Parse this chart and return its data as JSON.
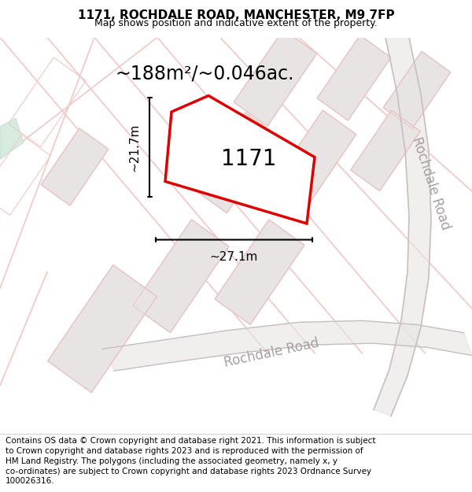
{
  "title_line1": "1171, ROCHDALE ROAD, MANCHESTER, M9 7FP",
  "title_line2": "Map shows position and indicative extent of the property.",
  "footer_text": "Contains OS data © Crown copyright and database right 2021. This information is subject\nto Crown copyright and database rights 2023 and is reproduced with the permission of\nHM Land Registry. The polygons (including the associated geometry, namely x, y\nco-ordinates) are subject to Crown copyright and database rights 2023 Ordnance Survey\n100026316.",
  "area_label": "~188m²/~0.046ac.",
  "number_label": "1171",
  "dim_width": "~27.1m",
  "dim_height": "~21.7m",
  "road_label_right": "Rochdale Road",
  "road_label_bottom": "Rochdale Road",
  "bg_color": "#ffffff",
  "map_bg": "#ffffff",
  "plot_outline_color": "#dd0000",
  "plot_fill": "#ffffff",
  "building_fill": "#e8e4e4",
  "building_edge": "#c0b8b8",
  "road_outline_color": "#f0c8c8",
  "road_fill_color": "#f8f0f0",
  "road_gray_color": "#c8c0c0",
  "road_gray_fill": "#e8e4e4",
  "dim_line_color": "#000000",
  "title_fontsize": 11,
  "subtitle_fontsize": 9,
  "footer_fontsize": 7.5,
  "area_fontsize": 17,
  "number_fontsize": 20,
  "dim_fontsize": 11,
  "road_fontsize": 12,
  "green_patch": "#d8ebe0"
}
